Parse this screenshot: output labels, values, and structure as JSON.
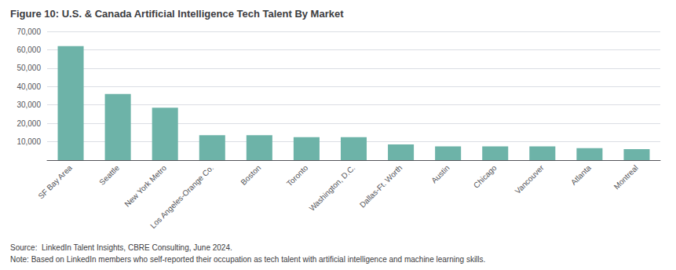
{
  "chart_data": {
    "type": "bar",
    "title": "Figure 10: U.S. & Canada Artificial Intelligence Tech Talent By Market",
    "categories": [
      "SF Bay Area",
      "Seattle",
      "New York Metro",
      "Los Angeles-Orange Co.",
      "Boston",
      "Toronto",
      "Washington, D.C.",
      "Dallas-Ft. Worth",
      "Austin",
      "Chicago",
      "Vancouver",
      "Atlanta",
      "Montreal"
    ],
    "values": [
      62000,
      36000,
      28500,
      13500,
      13500,
      12500,
      12500,
      8500,
      7500,
      7500,
      7500,
      6500,
      6000
    ],
    "color": "#6db3a8",
    "ylim": [
      0,
      70000
    ],
    "yticks": [
      {
        "value": 0,
        "label": ""
      },
      {
        "value": 10000,
        "label": "10,000"
      },
      {
        "value": 20000,
        "label": "20,000"
      },
      {
        "value": 30000,
        "label": "30,000"
      },
      {
        "value": 40000,
        "label": "40,000"
      },
      {
        "value": 50000,
        "label": "50,000"
      },
      {
        "value": 60000,
        "label": "60,000"
      },
      {
        "value": 70000,
        "label": "70,000"
      }
    ],
    "grid": true,
    "annotations": [
      "Source:  LinkedIn Talent Insights, CBRE Consulting, June 2024.",
      "Note: Based on LinkedIn members who self-reported their occupation as tech talent with artificial intelligence and machine learning skills."
    ]
  }
}
